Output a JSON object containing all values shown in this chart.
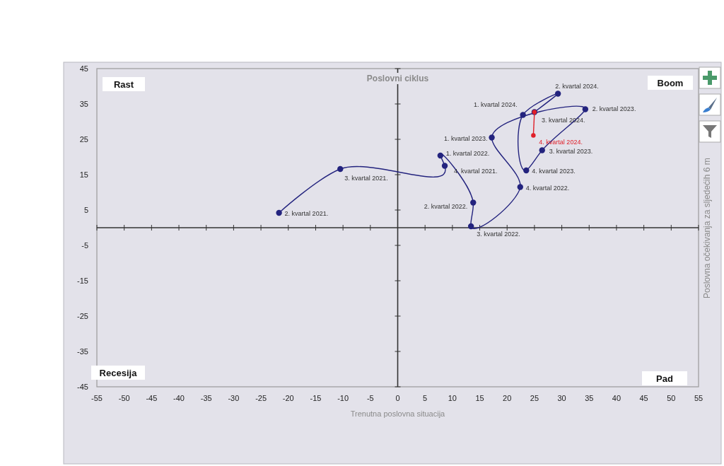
{
  "chart_data": {
    "type": "line",
    "title": "Poslovni ciklus",
    "xlabel": "Trenutna poslovna situacija",
    "ylabel": "Poslovna očekivanja za sljedećih 6 m",
    "xlim": [
      -55,
      55
    ],
    "xticks": [
      -55,
      -50,
      -45,
      -40,
      -35,
      -30,
      -25,
      -20,
      -15,
      -10,
      -5,
      0,
      5,
      10,
      15,
      20,
      25,
      30,
      35,
      40,
      45,
      50,
      55
    ],
    "ylim": [
      -45,
      45
    ],
    "yticks": [
      -45,
      -35,
      -25,
      -15,
      -5,
      5,
      15,
      25,
      35,
      45
    ],
    "marker": "circle",
    "annotations": [
      "Rast",
      "Boom",
      "Recesija",
      "Pad",
      {
        "text": "2. kvartal 2021.",
        "x": -21.7,
        "y": 4.2
      },
      {
        "text": "3. kvartal 2021.",
        "x": -10.5,
        "y": 16.6
      },
      {
        "text": "4. kvartal 2021.",
        "x": 8.6,
        "y": 17.5
      },
      {
        "text": "1. kvartal 2022.",
        "x": 7.8,
        "y": 20.4
      },
      {
        "text": "2. kvartal 2022.",
        "x": 13.8,
        "y": 7.1
      },
      {
        "text": "3. kvartal 2022.",
        "x": 13.4,
        "y": 0.4
      },
      {
        "text": "4. kvartal 2022.",
        "x": 22.4,
        "y": 11.5
      },
      {
        "text": "1. kvartal 2023.",
        "x": 17.2,
        "y": 25.5
      },
      {
        "text": "2. kvartal 2023.",
        "x": 34.3,
        "y": 33.5
      },
      {
        "text": "3. kvartal 2023.",
        "x": 26.4,
        "y": 21.9
      },
      {
        "text": "4. kvartal 2023.",
        "x": 23.5,
        "y": 16.2
      },
      {
        "text": "1. kvartal 2024.",
        "x": 22.9,
        "y": 31.9
      },
      {
        "text": "2. kvartal 2024.",
        "x": 29.3,
        "y": 37.9
      },
      {
        "text": "3. kvartal 2024.",
        "x": 25.0,
        "y": 32.7
      },
      {
        "text": "4. kvartal 2024.",
        "x": 24.8,
        "y": 26.1
      }
    ],
    "series": [
      {
        "color": "#23237e",
        "x": [
          -21.7,
          -10.5,
          8.6,
          7.8,
          13.8,
          13.4,
          22.4,
          17.2,
          34.3,
          26.4,
          23.5,
          22.9,
          29.3,
          25.0
        ],
        "values": [
          4.2,
          16.6,
          17.5,
          20.4,
          7.1,
          0.4,
          11.5,
          25.5,
          33.5,
          21.9,
          16.2,
          31.9,
          37.9,
          32.7
        ]
      },
      {
        "color": "#e0202a",
        "x": [
          25.0,
          24.8
        ],
        "values": [
          32.7,
          26.1
        ]
      }
    ]
  }
}
